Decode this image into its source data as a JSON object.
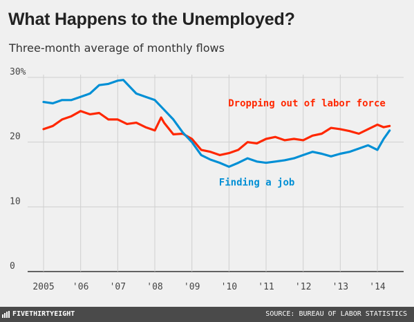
{
  "header": {
    "title": "What Happens to the Unemployed?",
    "subtitle": "Three-month average of monthly flows"
  },
  "footer": {
    "brand": "FIVETHIRTYEIGHT",
    "source": "SOURCE: BUREAU OF LABOR STATISTICS"
  },
  "colors": {
    "background": "#f0f0f0",
    "grid": "#cfcfcf",
    "zero_line": "#333333",
    "labor_force": "#ff2700",
    "job": "#008fd5",
    "footer_bg": "#4a4a4a"
  },
  "chart_data": {
    "type": "line",
    "title": "What Happens to the Unemployed?",
    "subtitle": "Three-month average of monthly flows",
    "ylim": [
      0,
      30
    ],
    "xlim": [
      2005,
      2014.4
    ],
    "y_ticks": [
      0,
      10,
      20,
      30
    ],
    "y_tick_labels": [
      "0",
      "10",
      "20",
      "30%"
    ],
    "x_ticks": [
      2005,
      2006,
      2007,
      2008,
      2009,
      2010,
      2011,
      2012,
      2013,
      2014
    ],
    "x_tick_labels": [
      "2005",
      "'06",
      "'07",
      "'08",
      "'09",
      "'10",
      "'11",
      "'12",
      "'13",
      "'14"
    ],
    "grid": true,
    "legend": "direct labels",
    "series": [
      {
        "name": "Dropping out of labor force",
        "color": "#ff2700",
        "label_position": [
          2012.1,
          25.5
        ],
        "x": [
          2005.0,
          2005.25,
          2005.5,
          2005.75,
          2006.0,
          2006.25,
          2006.5,
          2006.75,
          2007.0,
          2007.25,
          2007.5,
          2007.75,
          2008.0,
          2008.17,
          2008.25,
          2008.5,
          2008.75,
          2009.0,
          2009.25,
          2009.5,
          2009.75,
          2010.0,
          2010.25,
          2010.5,
          2010.75,
          2011.0,
          2011.25,
          2011.5,
          2011.75,
          2012.0,
          2012.25,
          2012.5,
          2012.75,
          2013.0,
          2013.25,
          2013.5,
          2013.75,
          2014.0,
          2014.17,
          2014.33
        ],
        "values": [
          22.0,
          22.5,
          23.5,
          24.0,
          24.8,
          24.3,
          24.5,
          23.5,
          23.5,
          22.8,
          23.0,
          22.3,
          21.8,
          23.8,
          23.0,
          21.2,
          21.3,
          20.5,
          18.8,
          18.5,
          18.0,
          18.3,
          18.8,
          20.0,
          19.8,
          20.5,
          20.8,
          20.3,
          20.5,
          20.3,
          21.0,
          21.3,
          22.2,
          22.0,
          21.7,
          21.3,
          22.0,
          22.7,
          22.3,
          22.5
        ]
      },
      {
        "name": "Finding a job",
        "color": "#008fd5",
        "label_position": [
          2010.75,
          13.3
        ],
        "x": [
          2005.0,
          2005.25,
          2005.5,
          2005.75,
          2006.0,
          2006.25,
          2006.5,
          2006.75,
          2007.0,
          2007.15,
          2007.25,
          2007.5,
          2007.75,
          2008.0,
          2008.25,
          2008.5,
          2008.75,
          2009.0,
          2009.25,
          2009.5,
          2009.75,
          2010.0,
          2010.25,
          2010.5,
          2010.75,
          2011.0,
          2011.25,
          2011.5,
          2011.75,
          2012.0,
          2012.25,
          2012.5,
          2012.75,
          2013.0,
          2013.25,
          2013.5,
          2013.75,
          2014.0,
          2014.17,
          2014.33
        ],
        "values": [
          26.2,
          26.0,
          26.5,
          26.5,
          27.0,
          27.5,
          28.8,
          29.0,
          29.5,
          29.6,
          29.0,
          27.5,
          27.0,
          26.5,
          25.0,
          23.5,
          21.5,
          20.0,
          18.0,
          17.3,
          16.8,
          16.2,
          16.8,
          17.5,
          17.0,
          16.8,
          17.0,
          17.2,
          17.5,
          18.0,
          18.5,
          18.2,
          17.8,
          18.2,
          18.5,
          19.0,
          19.5,
          18.8,
          20.5,
          21.8
        ]
      }
    ]
  }
}
